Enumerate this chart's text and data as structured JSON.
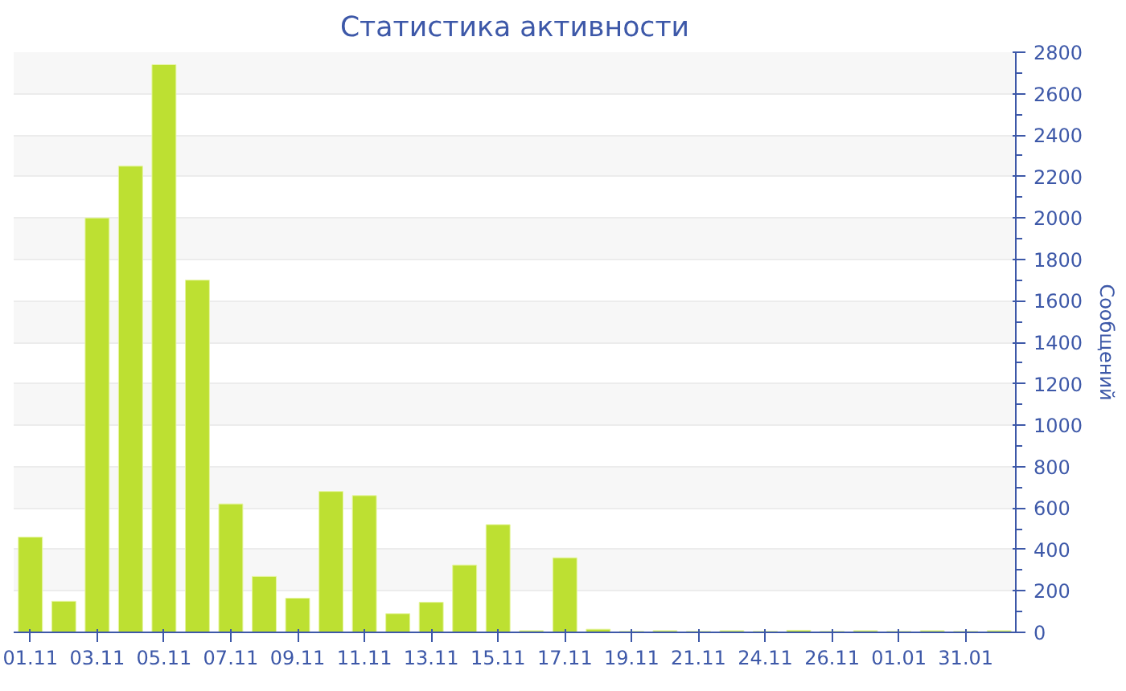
{
  "chart_data": {
    "type": "bar",
    "title": "Статистика активности",
    "y2label": "Сообщений",
    "categories": [
      "01.11",
      null,
      "03.11",
      null,
      "05.11",
      null,
      "07.11",
      null,
      "09.11",
      null,
      "11.11",
      null,
      "13.11",
      null,
      "15.11",
      null,
      "17.11",
      null,
      "19.11",
      null,
      "21.11",
      null,
      "24.11",
      null,
      "26.11",
      null,
      "01.01",
      null,
      "31.01",
      null
    ],
    "series": [
      {
        "color": "#bde032",
        "axis": "y2",
        "values": [
          460,
          150,
          2000,
          2250,
          2740,
          1700,
          620,
          270,
          165,
          680,
          660,
          90,
          145,
          325,
          520,
          8,
          360,
          15,
          5,
          8,
          5,
          8,
          5,
          10,
          5,
          8,
          5,
          8,
          5,
          8
        ]
      }
    ],
    "y2lim": [
      0,
      2800
    ],
    "y2ticks": [
      0,
      200,
      400,
      600,
      800,
      1000,
      1200,
      1400,
      1600,
      1800,
      2000,
      2200,
      2400,
      2600,
      2800
    ],
    "grid": "y"
  }
}
